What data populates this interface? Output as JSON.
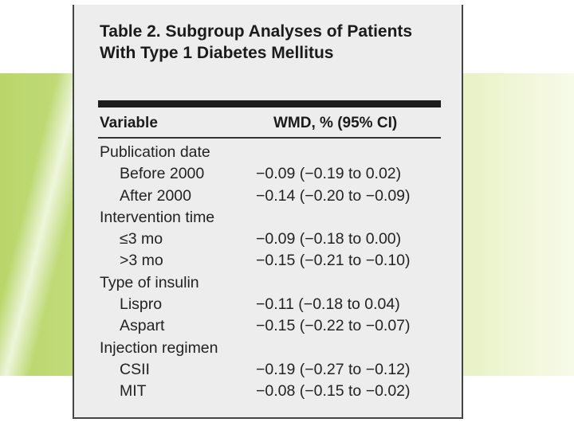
{
  "table": {
    "title": "Table 2. Subgroup Analyses of Patients With Type 1 Diabetes Mellitus",
    "columns": [
      "Variable",
      "WMD, % (95% CI)"
    ],
    "rows": [
      {
        "kind": "group",
        "label": "Publication date",
        "value": ""
      },
      {
        "kind": "sub",
        "label": "Before 2000",
        "value": "−0.09 (−0.19 to 0.02)"
      },
      {
        "kind": "sub",
        "label": "After 2000",
        "value": "−0.14 (−0.20 to −0.09)"
      },
      {
        "kind": "group",
        "label": "Intervention time",
        "value": ""
      },
      {
        "kind": "sub",
        "label": "≤3 mo",
        "value": "−0.09 (−0.18 to 0.00)"
      },
      {
        "kind": "sub",
        "label": ">3 mo",
        "value": "−0.15 (−0.21 to −0.10)"
      },
      {
        "kind": "group",
        "label": "Type of insulin",
        "value": ""
      },
      {
        "kind": "sub",
        "label": "Lispro",
        "value": "−0.11 (−0.18 to 0.04)"
      },
      {
        "kind": "sub",
        "label": "Aspart",
        "value": "−0.15 (−0.22 to −0.07)"
      },
      {
        "kind": "group",
        "label": "Injection regimen",
        "value": ""
      },
      {
        "kind": "sub",
        "label": "CSII",
        "value": "−0.19 (−0.27 to −0.12)"
      },
      {
        "kind": "sub",
        "label": "MIT",
        "value": "−0.08 (−0.15 to −0.02)"
      }
    ]
  },
  "colors": {
    "background_band": "#cfe495",
    "table_background": "#ededed",
    "text": "#1b1b1b"
  }
}
